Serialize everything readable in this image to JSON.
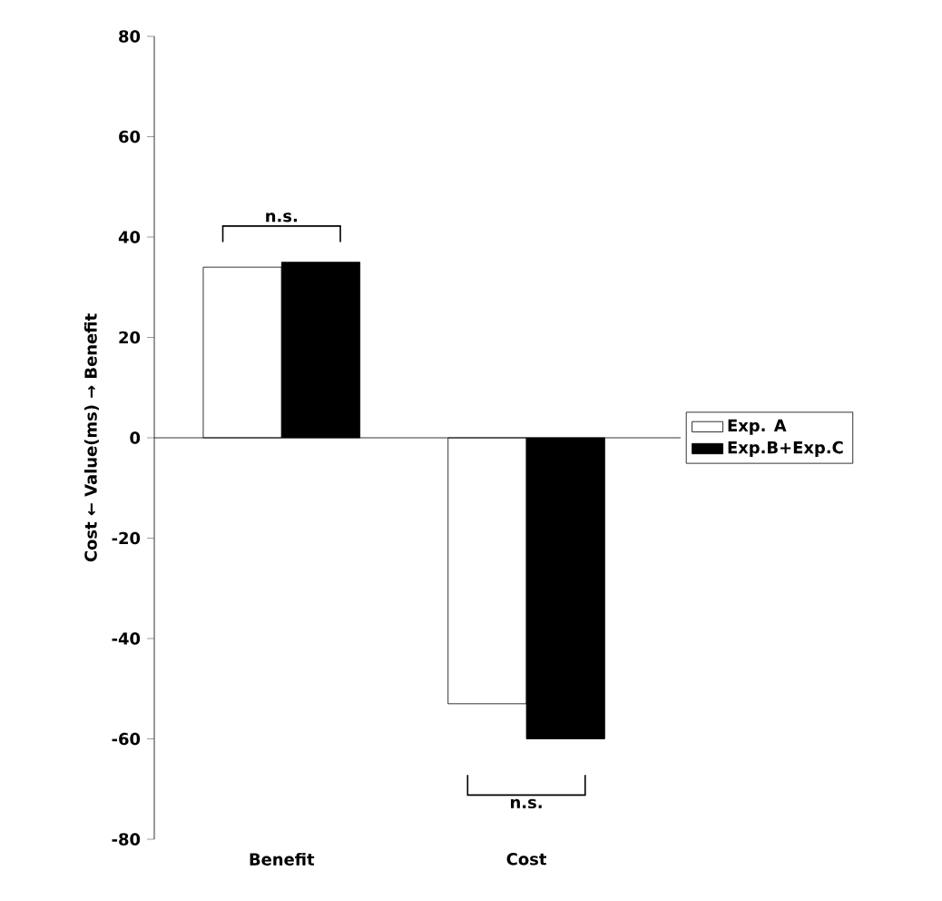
{
  "chart_data": {
    "type": "bar",
    "ylabel": "Cost ← Value(ms) → Benefit",
    "categories": [
      "Benefit",
      "Cost"
    ],
    "series": [
      {
        "name": "Exp. A",
        "color": "#ffffff",
        "values": [
          34,
          -53
        ]
      },
      {
        "name": "Exp.B+Exp.C",
        "color": "#000000",
        "values": [
          35,
          -60
        ]
      }
    ],
    "ylim": [
      -80,
      80
    ],
    "yticks": [
      -80,
      -60,
      -40,
      -20,
      0,
      20,
      40,
      60,
      80
    ],
    "legend": "right",
    "annotations": [
      "n.s.",
      "n.s."
    ]
  }
}
